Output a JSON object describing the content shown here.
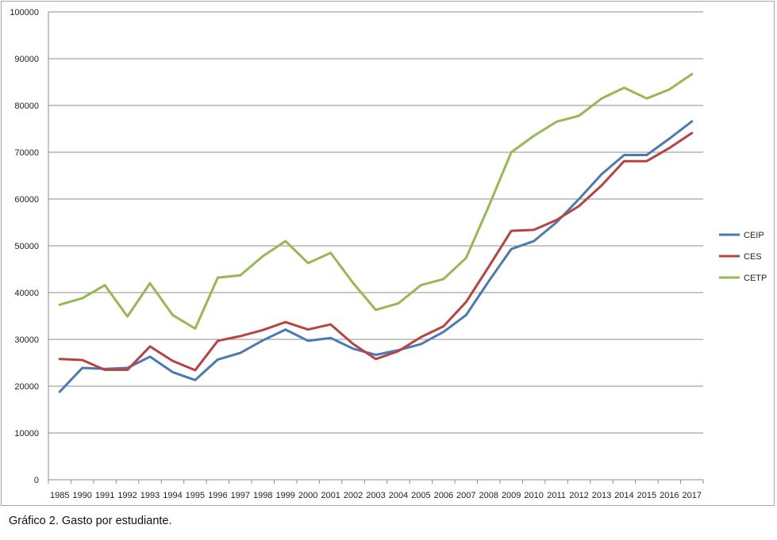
{
  "caption": "Gráfico 2. Gasto por estudiante.",
  "chart_data": {
    "type": "line",
    "title": "",
    "xlabel": "",
    "ylabel": "",
    "ylim": [
      0,
      100000
    ],
    "y_ticks": [
      0,
      10000,
      20000,
      30000,
      40000,
      50000,
      60000,
      70000,
      80000,
      90000,
      100000
    ],
    "grid": true,
    "legend_position": "right",
    "categories": [
      "1985",
      "1990",
      "1991",
      "1992",
      "1993",
      "1994",
      "1995",
      "1996",
      "1997",
      "1998",
      "1999",
      "2000",
      "2001",
      "2002",
      "2003",
      "2004",
      "2005",
      "2006",
      "2007",
      "2008",
      "2009",
      "2010",
      "2011",
      "2012",
      "2013",
      "2014",
      "2015",
      "2016",
      "2017"
    ],
    "series": [
      {
        "name": "CEIP",
        "color": "#4a7ab3",
        "values": [
          18800,
          23900,
          23700,
          23900,
          26300,
          23000,
          21300,
          25700,
          27100,
          29800,
          32100,
          29700,
          30300,
          28000,
          26700,
          27700,
          29000,
          31600,
          35200,
          42400,
          49300,
          51000,
          55000,
          60000,
          65300,
          69400,
          69400,
          72900,
          76600
        ]
      },
      {
        "name": "CES",
        "color": "#b84340",
        "values": [
          25800,
          25600,
          23500,
          23500,
          28500,
          25400,
          23400,
          29700,
          30700,
          32000,
          33700,
          32100,
          33200,
          29000,
          25800,
          27500,
          30500,
          32800,
          38000,
          45500,
          53200,
          53400,
          55500,
          58500,
          62900,
          68100,
          68100,
          70900,
          74100
        ]
      },
      {
        "name": "CETP",
        "color": "#98b853",
        "values": [
          37400,
          38800,
          41600,
          34900,
          42000,
          35200,
          32300,
          43200,
          43700,
          47800,
          51000,
          46300,
          48500,
          42000,
          36300,
          37700,
          41600,
          42900,
          47400,
          58400,
          70000,
          73500,
          76500,
          77800,
          81500,
          83800,
          81500,
          83400,
          86700
        ]
      }
    ]
  }
}
